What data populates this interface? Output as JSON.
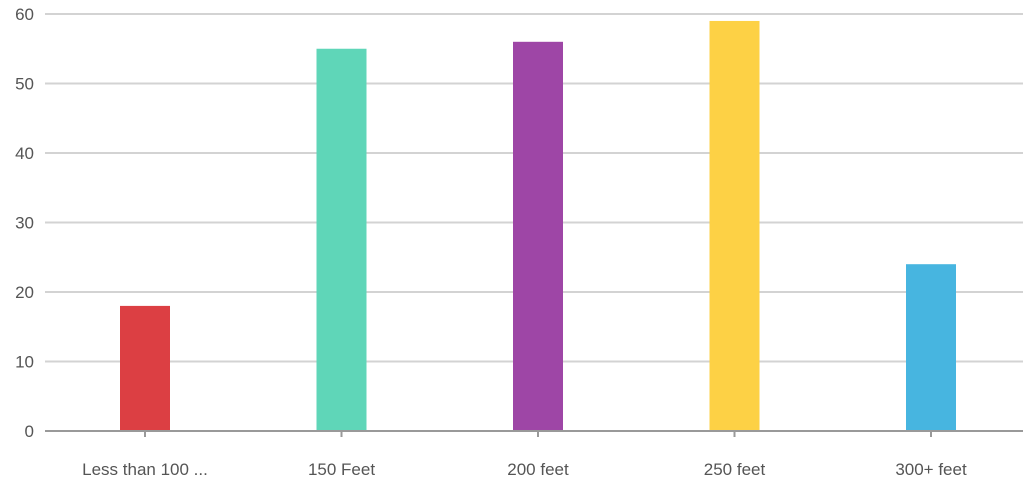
{
  "chart_data": {
    "type": "bar",
    "title": "",
    "xlabel": "",
    "ylabel": "",
    "categories": [
      "Less than 100 ...",
      "150 Feet",
      "200 feet",
      "250 feet",
      "300+ feet"
    ],
    "values": [
      18,
      55,
      56,
      59,
      24
    ],
    "colors": [
      "#dc3f43",
      "#5fd6b8",
      "#9e46a6",
      "#fdd145",
      "#47b5e0"
    ],
    "ylim": [
      0,
      60
    ],
    "yticks": [
      0,
      10,
      20,
      30,
      40,
      50,
      60
    ],
    "grid": true,
    "legend": "none"
  }
}
